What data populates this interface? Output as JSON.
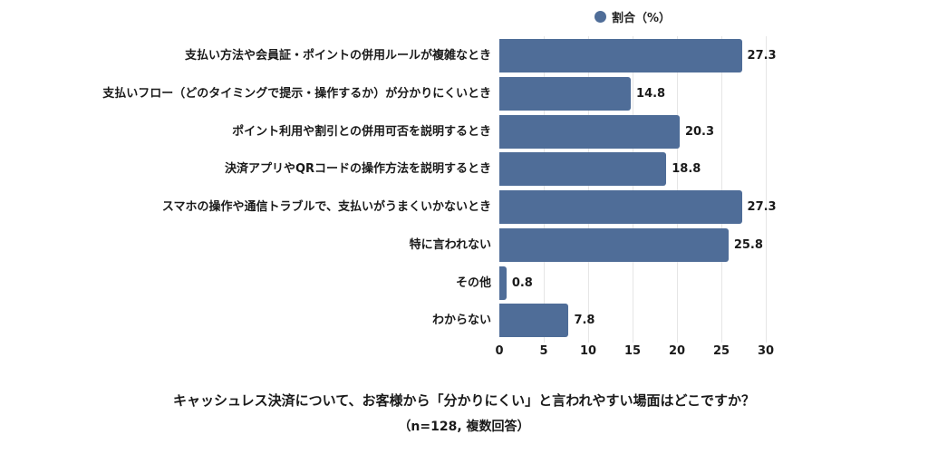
{
  "chart_data": {
    "type": "bar",
    "orientation": "horizontal",
    "title": "キャッシュレス決済について、お客様から「分かりにくい」と言われやすい場面はどこですか？",
    "subtitle": "（n=128, 複数回答）",
    "xlabel": "",
    "ylabel": "",
    "xlim": [
      0,
      30
    ],
    "xticks": [
      "0",
      "5",
      "10",
      "15",
      "20",
      "25",
      "30"
    ],
    "grid": true,
    "legend_position": "top",
    "color": "#4F6D98",
    "series": [
      {
        "name": "割合（%）",
        "values": [
          27.3,
          14.8,
          20.3,
          18.8,
          27.3,
          25.8,
          0.8,
          7.8
        ]
      }
    ],
    "categories": [
      "支払い方法や会員証・ポイントの併用ルールが複雑なとき",
      "支払いフロー（どのタイミングで提示・操作するか）が分かりにくいとき",
      "ポイント利用や割引との併用可否を説明するとき",
      "決済アプリやQRコードの操作方法を説明するとき",
      "スマホの操作や通信トラブルで、支払いがうまくいかないとき",
      "特に言われない",
      "その他",
      "わからない"
    ],
    "value_labels": [
      "27.3",
      "14.8",
      "20.3",
      "18.8",
      "27.3",
      "25.8",
      "0.8",
      "7.8"
    ]
  },
  "legend": {
    "label": "割合（%）"
  }
}
